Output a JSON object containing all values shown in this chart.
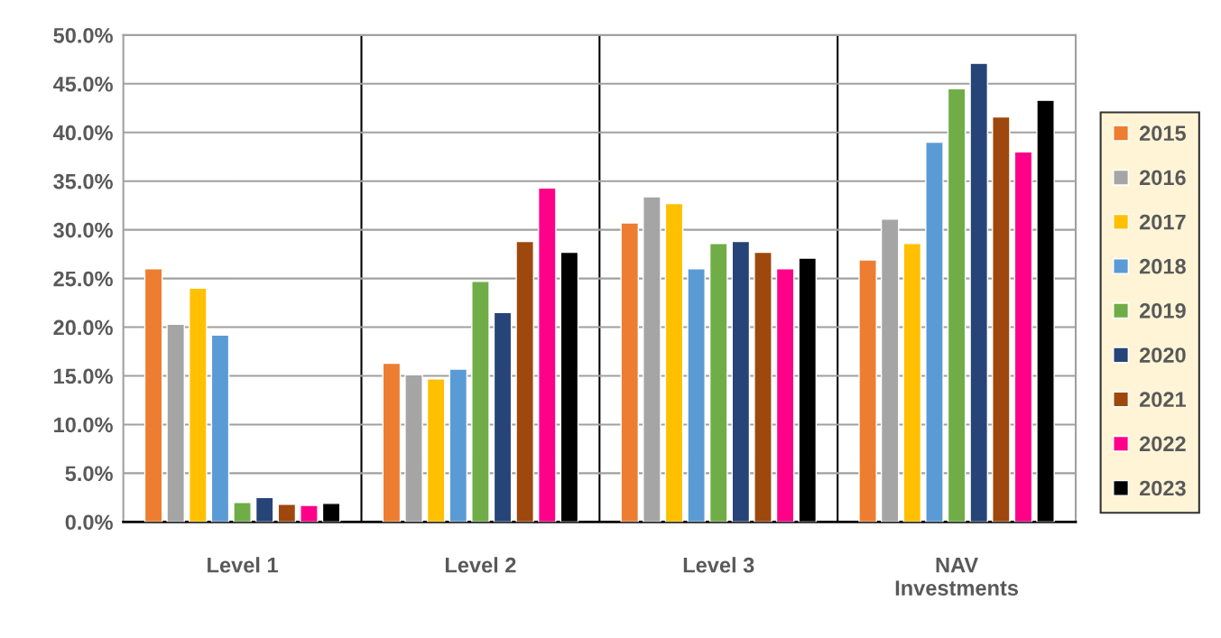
{
  "chart_data": {
    "type": "bar",
    "categories": [
      "Level 1",
      "Level 2",
      "Level 3",
      "NAV\nInvestments"
    ],
    "series": [
      {
        "name": "2015",
        "color": "#ed7d31",
        "values": [
          26.0,
          16.3,
          30.7,
          26.9
        ]
      },
      {
        "name": "2016",
        "color": "#a5a5a5",
        "values": [
          20.3,
          15.1,
          33.4,
          31.1
        ]
      },
      {
        "name": "2017",
        "color": "#ffc000",
        "values": [
          24.0,
          14.7,
          32.7,
          28.6
        ]
      },
      {
        "name": "2018",
        "color": "#5b9bd5",
        "values": [
          19.2,
          15.7,
          26.0,
          39.0
        ]
      },
      {
        "name": "2019",
        "color": "#70ad47",
        "values": [
          2.0,
          24.7,
          28.6,
          44.5
        ]
      },
      {
        "name": "2020",
        "color": "#264478",
        "values": [
          2.5,
          21.5,
          28.8,
          47.1
        ]
      },
      {
        "name": "2021",
        "color": "#9e480e",
        "values": [
          1.8,
          28.8,
          27.7,
          41.6
        ]
      },
      {
        "name": "2022",
        "color": "#ff0088",
        "values": [
          1.7,
          34.3,
          26.0,
          38.0
        ]
      },
      {
        "name": "2023",
        "color": "#000000",
        "values": [
          1.9,
          27.7,
          27.1,
          43.3
        ]
      }
    ],
    "ylim": [
      0,
      50
    ],
    "yticks": [
      {
        "value": 0,
        "label": "0.0%"
      },
      {
        "value": 5,
        "label": "5.0%"
      },
      {
        "value": 10,
        "label": "10.0%"
      },
      {
        "value": 15,
        "label": "15.0%"
      },
      {
        "value": 20,
        "label": "20.0%"
      },
      {
        "value": 25,
        "label": "25.0%"
      },
      {
        "value": 30,
        "label": "30.0%"
      },
      {
        "value": 35,
        "label": "35.0%"
      },
      {
        "value": 40,
        "label": "40.0%"
      },
      {
        "value": 45,
        "label": "45.0%"
      },
      {
        "value": 50,
        "label": "50.0%"
      }
    ],
    "grid": "y",
    "legend": "right"
  }
}
